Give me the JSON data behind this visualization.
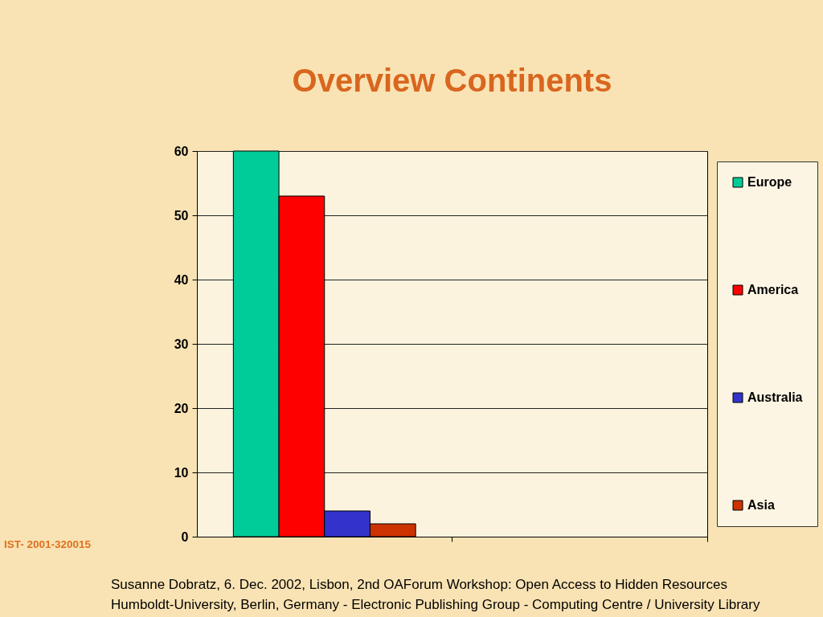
{
  "chart_data": {
    "type": "bar",
    "title": "Overview Continents",
    "categories": [
      null,
      null
    ],
    "series": [
      {
        "name": "Europe",
        "color": "#00cc99",
        "values": [
          60,
          null
        ]
      },
      {
        "name": "America",
        "color": "#ff0000",
        "values": [
          53,
          null
        ]
      },
      {
        "name": "Australia",
        "color": "#3333cc",
        "values": [
          4,
          null
        ]
      },
      {
        "name": "Asia",
        "color": "#cc3300",
        "values": [
          2,
          null
        ]
      }
    ],
    "ylim": [
      0,
      60
    ],
    "yticks": [
      0,
      10,
      20,
      30,
      40,
      50,
      60
    ],
    "grid": "y",
    "legend": "right",
    "tick_labels": "y",
    "annotations": [
      "IST- 2001-320015",
      "Susanne Dobratz, 6. Dec. 2002, Lisbon, 2nd OAForum Workshop: Open Access to Hidden Resources",
      "Humboldt-University, Berlin, Germany - Electronic Publishing Group - Computing Centre / University Library"
    ]
  }
}
